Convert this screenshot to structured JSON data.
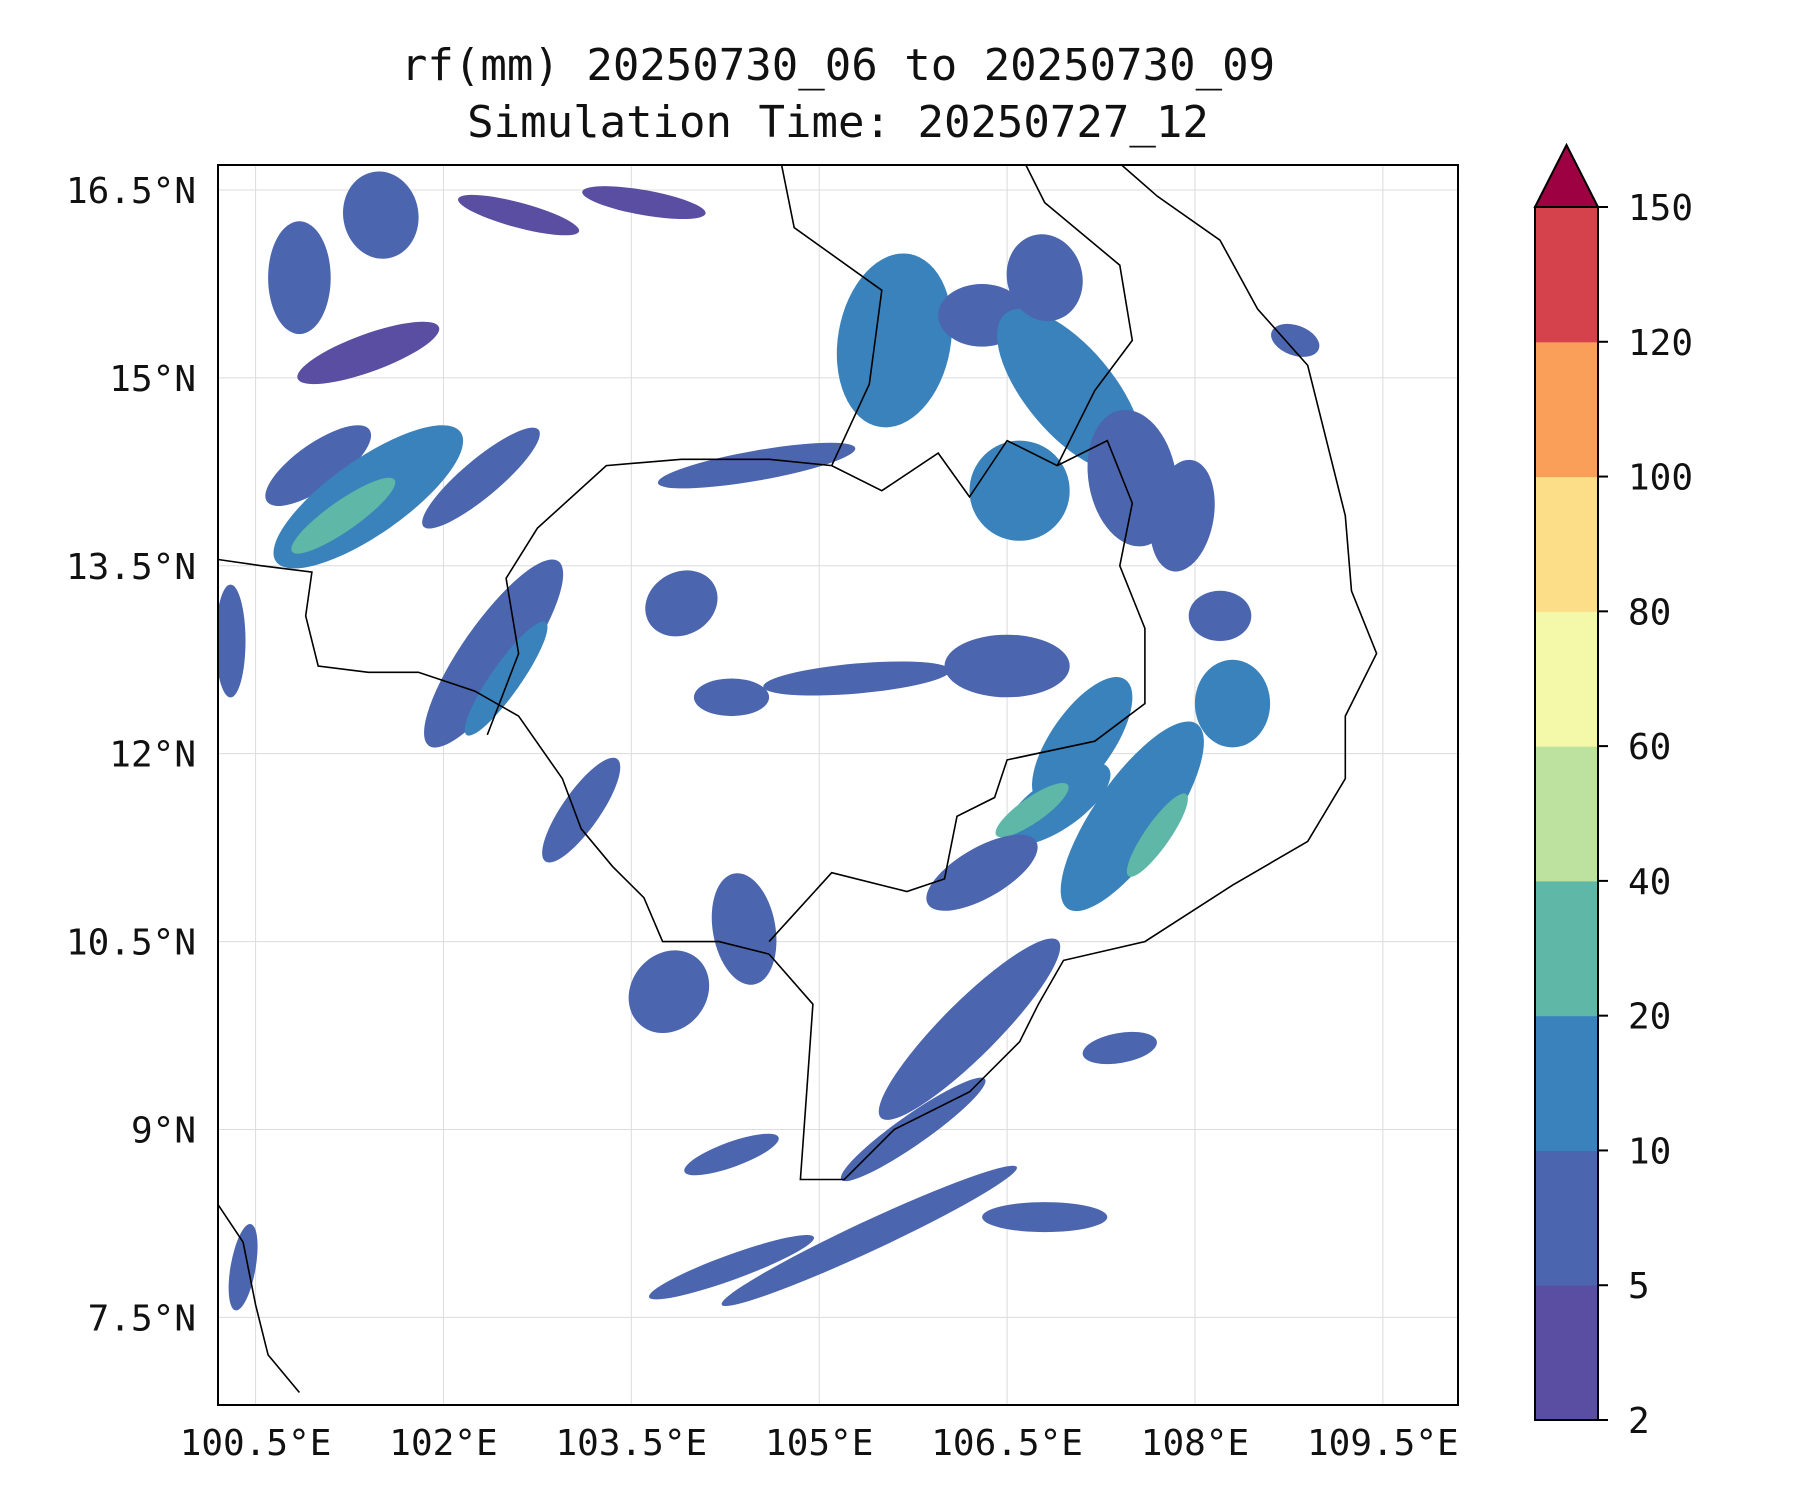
{
  "title": "rf(mm) 20250730_06 to 20250730_09",
  "subtitle": "Simulation Time: 20250727_12",
  "map": {
    "extent": {
      "lon_min": 100.2,
      "lon_max": 110.1,
      "lat_min": 6.8,
      "lat_max": 16.7
    },
    "lon_ticks": [
      100.5,
      102,
      103.5,
      105,
      106.5,
      108,
      109.5
    ],
    "lon_tick_labels": [
      "100.5°E",
      "102°E",
      "103.5°E",
      "105°E",
      "106.5°E",
      "108°E",
      "109.5°E"
    ],
    "lat_ticks": [
      7.5,
      9,
      10.5,
      12,
      13.5,
      15,
      16.5
    ],
    "lat_tick_labels": [
      "7.5°N",
      "9°N",
      "10.5°N",
      "12°N",
      "13.5°N",
      "15°N",
      "16.5°N"
    ],
    "gridlines": true
  },
  "colorbar": {
    "levels": [
      2,
      5,
      10,
      20,
      40,
      60,
      80,
      100,
      120,
      150
    ],
    "tick_labels": [
      "2",
      "5",
      "10",
      "20",
      "40",
      "60",
      "80",
      "100",
      "120",
      "150"
    ],
    "colors": [
      "#5a4ea2",
      "#4b65ae",
      "#3a82bc",
      "#5fb7a8",
      "#bde2a0",
      "#f4f9a9",
      "#fcdd88",
      "#f99f59",
      "#d6424b",
      "#9d0142"
    ],
    "extend": "max"
  },
  "colors": {
    "coastline": "#000000",
    "grid": "#dcdcdc",
    "frame": "#000000"
  }
}
